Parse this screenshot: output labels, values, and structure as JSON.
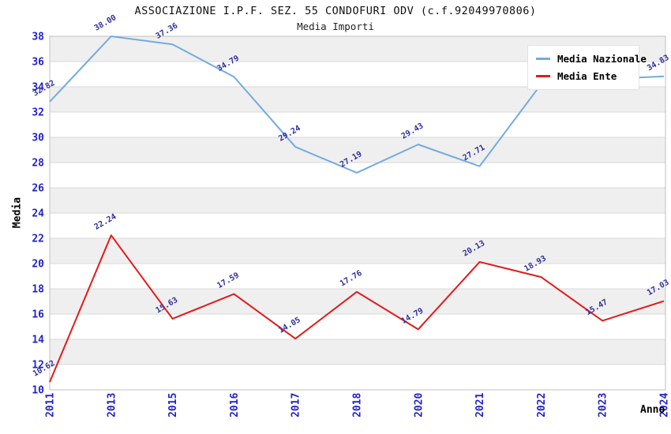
{
  "chart_data": {
    "type": "line",
    "title": "ASSOCIAZIONE I.P.F. SEZ. 55 CONDOFURI ODV (c.f.92049970806)",
    "subtitle": "Media Importi",
    "xlabel": "Anno",
    "ylabel": "Media",
    "categories": [
      "2011",
      "2013",
      "2015",
      "2016",
      "2017",
      "2018",
      "2020",
      "2021",
      "2022",
      "2023",
      "2024"
    ],
    "ylim": [
      10,
      38
    ],
    "ytick_step": 2,
    "grid": true,
    "band_fill": true,
    "legend_position": "top-right",
    "series": [
      {
        "name": "Media Nazionale",
        "color": "#73abdf",
        "values": [
          32.82,
          38.0,
          37.36,
          34.79,
          29.24,
          27.19,
          29.43,
          27.71,
          34.2,
          34.6,
          34.83
        ],
        "labels": [
          "32.82",
          "38.00",
          "37.36",
          "34.79",
          "29.24",
          "27.19",
          "29.43",
          "27.71",
          null,
          null,
          "34.83"
        ]
      },
      {
        "name": "Media Ente",
        "color": "#e41a1a",
        "values": [
          10.62,
          22.24,
          15.63,
          17.59,
          14.05,
          17.76,
          14.79,
          20.13,
          18.93,
          15.47,
          17.03
        ],
        "labels": [
          "10.62",
          "22.24",
          "15.63",
          "17.59",
          "14.05",
          "17.76",
          "14.79",
          "20.13",
          "18.93",
          "15.47",
          "17.03"
        ]
      }
    ],
    "colors": {
      "tick_label": "#2222cc",
      "data_label": "#30309c",
      "band": "#efefef",
      "gridline": "#d9d9d9",
      "plot_border": "#c0c0c0",
      "background": "#ffffff"
    }
  }
}
